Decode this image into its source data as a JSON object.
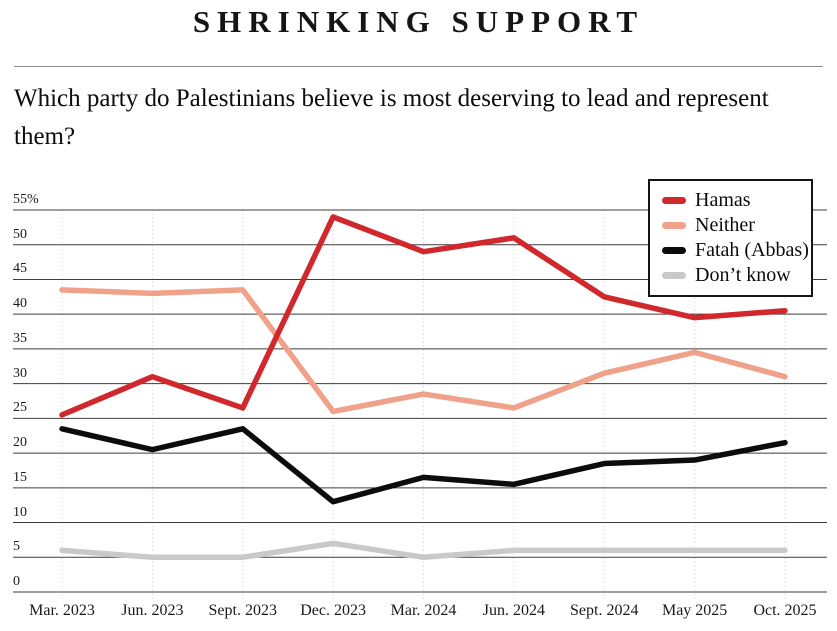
{
  "title": "SHRINKING SUPPORT",
  "question": "Which party do Palestinians believe is most deserving to lead and represent them?",
  "colors": {
    "background": "#ffffff",
    "gridline": "#3d3d3d",
    "column_guide": "#cfcfcf",
    "rule": "#8f8f8f",
    "text": "#0c0c0c"
  },
  "chart_data": {
    "type": "line",
    "title": "SHRINKING SUPPORT",
    "subtitle": "Which party do Palestinians believe is most deserving to lead and represent them?",
    "categories": [
      "Mar. 2023",
      "Jun. 2023",
      "Sept. 2023",
      "Dec. 2023",
      "Mar. 2024",
      "Jun. 2024",
      "Sept. 2024",
      "May 2025",
      "Oct. 2025"
    ],
    "series": [
      {
        "name": "Hamas",
        "color": "#d0282c",
        "values": [
          25.5,
          31,
          26.5,
          54,
          49,
          51,
          42.5,
          39.5,
          40.5
        ]
      },
      {
        "name": "Neither",
        "color": "#efa18a",
        "values": [
          43.5,
          43,
          43.5,
          26,
          28.5,
          26.5,
          31.5,
          34.5,
          31
        ]
      },
      {
        "name": "Fatah (Abbas)",
        "color": "#0c0c0c",
        "values": [
          23.5,
          20.5,
          23.5,
          13,
          16.5,
          15.5,
          18.5,
          19,
          21.5
        ]
      },
      {
        "name": "Don’t know",
        "color": "#c9c9c9",
        "values": [
          6,
          5,
          5,
          7,
          5,
          6,
          6,
          6,
          6
        ]
      }
    ],
    "xlabel": "",
    "ylabel": "",
    "y_ticks": [
      0,
      5,
      10,
      15,
      20,
      25,
      30,
      35,
      40,
      45,
      50,
      55
    ],
    "y_tick_labels": [
      "0",
      "5",
      "10",
      "15",
      "20",
      "25",
      "30",
      "35",
      "40",
      "45",
      "50",
      "55%"
    ],
    "ylim": [
      0,
      57.5
    ],
    "grid": "horizontal-solid-plus-vertical-dotted-guides",
    "legend_position": "top-right"
  }
}
